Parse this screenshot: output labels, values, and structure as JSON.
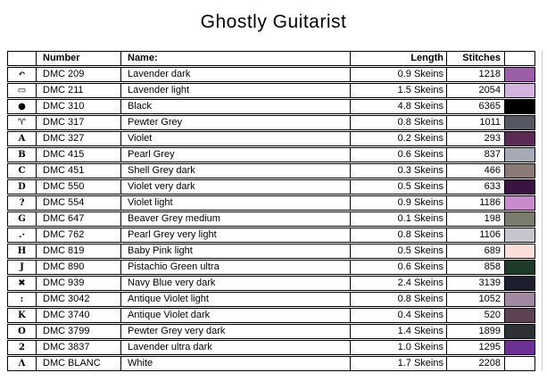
{
  "page": {
    "title": "Ghostly Guitarist"
  },
  "table": {
    "headers": {
      "symbol": "",
      "number": "Number",
      "name": "Name:",
      "length": "Length",
      "stitches": "Stitches",
      "swatch": ""
    },
    "rows": [
      {
        "symbol": "↶",
        "brand": "DMC",
        "code": "209",
        "name": "Lavender dark",
        "length": "0.9 Skeins",
        "stitches": "1218",
        "color": "#9B5FA7"
      },
      {
        "symbol": "▭",
        "brand": "DMC",
        "code": "211",
        "name": "Lavender light",
        "length": "1.5 Skeins",
        "stitches": "2054",
        "color": "#D3B4DE"
      },
      {
        "symbol": "●",
        "brand": "DMC",
        "code": "310",
        "name": "Black",
        "length": "4.8 Skeins",
        "stitches": "6365",
        "color": "#000000"
      },
      {
        "symbol": "♈",
        "brand": "DMC",
        "code": "317",
        "name": "Pewter Grey",
        "length": "0.8 Skeins",
        "stitches": "1011",
        "color": "#555863"
      },
      {
        "symbol": "A",
        "brand": "DMC",
        "code": "327",
        "name": "Violet",
        "length": "0.2 Skeins",
        "stitches": "293",
        "color": "#5A2C55"
      },
      {
        "symbol": "B",
        "brand": "DMC",
        "code": "415",
        "name": "Pearl Grey",
        "length": "0.6 Skeins",
        "stitches": "837",
        "color": "#A6AAB3"
      },
      {
        "symbol": "C",
        "brand": "DMC",
        "code": "451",
        "name": "Shell Grey dark",
        "length": "0.3 Skeins",
        "stitches": "466",
        "color": "#897A76"
      },
      {
        "symbol": "D",
        "brand": "DMC",
        "code": "550",
        "name": "Violet very dark",
        "length": "0.5 Skeins",
        "stitches": "633",
        "color": "#3A1441"
      },
      {
        "symbol": "?",
        "brand": "DMC",
        "code": "554",
        "name": "Violet light",
        "length": "0.9 Skeins",
        "stitches": "1186",
        "color": "#C78CCC"
      },
      {
        "symbol": "G",
        "brand": "DMC",
        "code": "647",
        "name": "Beaver Grey medium",
        "length": "0.1 Skeins",
        "stitches": "198",
        "color": "#7B7C6E"
      },
      {
        "symbol": ".·",
        "brand": "DMC",
        "code": "762",
        "name": "Pearl Grey very light",
        "length": "0.8 Skeins",
        "stitches": "1106",
        "color": "#C5C6D0"
      },
      {
        "symbol": "H",
        "brand": "DMC",
        "code": "819",
        "name": "Baby Pink light",
        "length": "0.5 Skeins",
        "stitches": "689",
        "color": "#FCDFD8"
      },
      {
        "symbol": "J",
        "brand": "DMC",
        "code": "890",
        "name": "Pistachio Green ultra",
        "length": "0.6 Skeins",
        "stitches": "858",
        "color": "#1E3B2A"
      },
      {
        "symbol": "✖",
        "brand": "DMC",
        "code": "939",
        "name": "Navy Blue very dark",
        "length": "2.4 Skeins",
        "stitches": "3139",
        "color": "#1C1F30"
      },
      {
        "symbol": ":",
        "brand": "DMC",
        "code": "3042",
        "name": "Antique Violet light",
        "length": "0.8 Skeins",
        "stitches": "1052",
        "color": "#A289A2"
      },
      {
        "symbol": "K",
        "brand": "DMC",
        "code": "3740",
        "name": "Antique Violet dark",
        "length": "0.4 Skeins",
        "stitches": "520",
        "color": "#5D4253"
      },
      {
        "symbol": "O",
        "brand": "DMC",
        "code": "3799",
        "name": "Pewter Grey very dark",
        "length": "1.4 Skeins",
        "stitches": "1899",
        "color": "#2D3134"
      },
      {
        "symbol": "2",
        "brand": "DMC",
        "code": "3837",
        "name": "Lavender ultra dark",
        "length": "1.0 Skeins",
        "stitches": "1295",
        "color": "#6D3095"
      },
      {
        "symbol": "Λ",
        "brand": "DMC",
        "code": "BLANC",
        "name": "White",
        "length": "1.7 Skeins",
        "stitches": "2208",
        "color": "#FDFDFD"
      }
    ]
  }
}
